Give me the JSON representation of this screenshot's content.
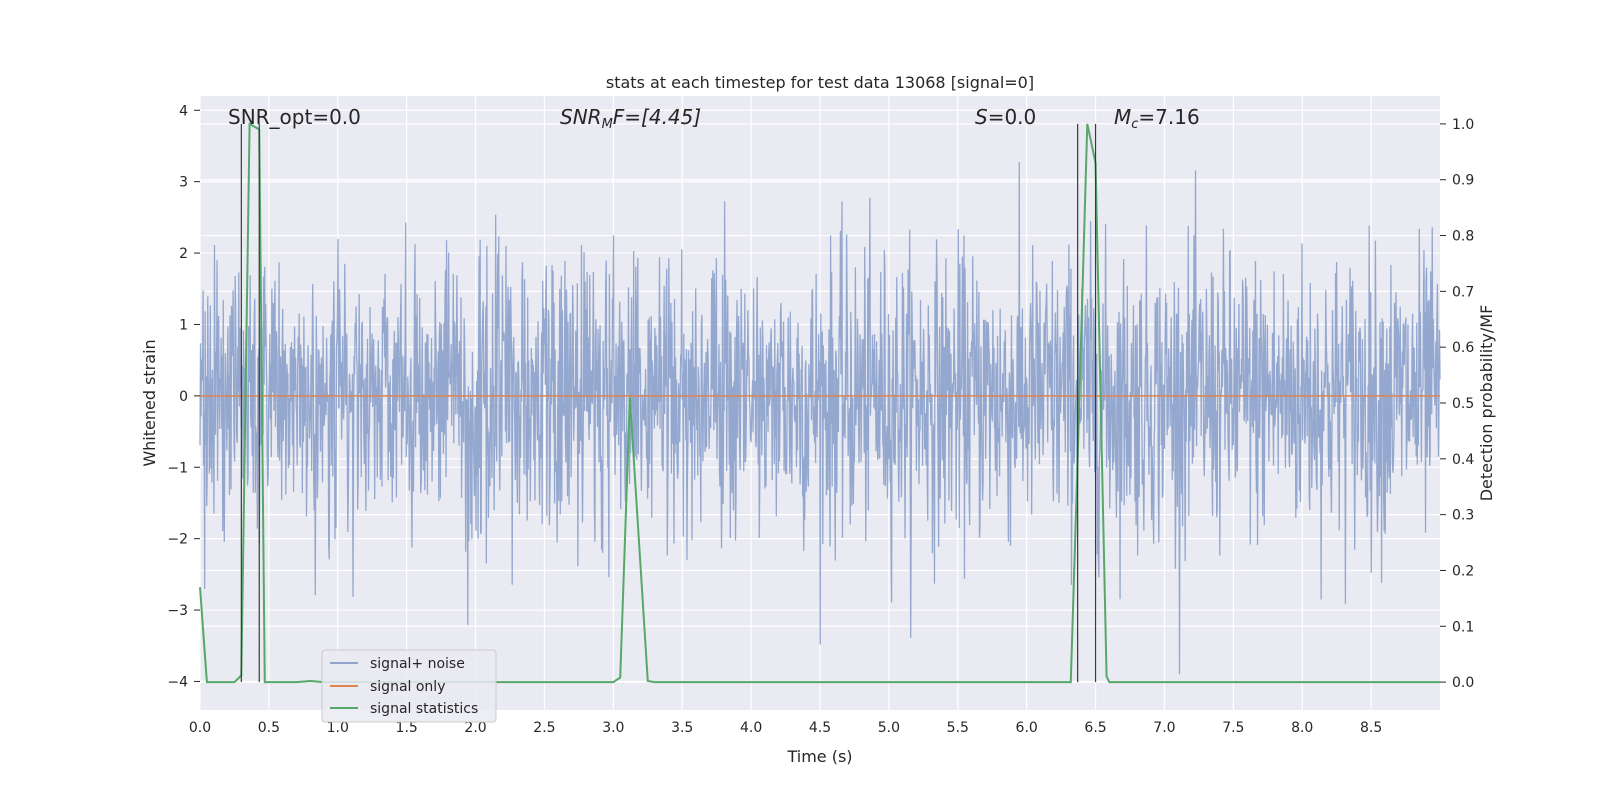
{
  "chart_data": {
    "type": "line",
    "title": "stats at each timestep for test data 13068 [signal=0]",
    "xlabel": "Time (s)",
    "ylabel": "Whitened strain",
    "y2label": "Detection probability/MF",
    "xlim": [
      0,
      9.0
    ],
    "ylim": [
      -4.4,
      4.2
    ],
    "y2lim": [
      -0.05,
      1.05
    ],
    "xticks": [
      "0.0",
      "0.5",
      "1.0",
      "1.5",
      "2.0",
      "2.5",
      "3.0",
      "3.5",
      "4.0",
      "4.5",
      "5.0",
      "5.5",
      "6.0",
      "6.5",
      "7.0",
      "7.5",
      "8.0",
      "8.5"
    ],
    "yticks": [
      "−4",
      "−3",
      "−2",
      "−1",
      "0",
      "1",
      "2",
      "3",
      "4"
    ],
    "y2ticks": [
      "0.0",
      "0.1",
      "0.2",
      "0.3",
      "0.4",
      "0.5",
      "0.6",
      "0.7",
      "0.8",
      "0.9",
      "1.0"
    ],
    "grid": true,
    "legend_position": "lower-left",
    "annotations": {
      "snr_opt": "SNR_opt=0.0",
      "snr_mf_base": "SNR",
      "snr_mf_sub": "M",
      "snr_mf_rest": "F=[4.45]",
      "s_base": "S",
      "s_rest": "=0.0",
      "mc_base": "M",
      "mc_sub": "c",
      "mc_rest": "=7.16"
    },
    "vlines": [
      0.3,
      0.43,
      6.37,
      6.5
    ],
    "series": [
      {
        "name": "signal+ noise",
        "color": "#8fa4cc",
        "axis": "left",
        "noise_envelope": {
          "std": 1.0,
          "max_abs": 3.9
        }
      },
      {
        "name": "signal only",
        "color": "#dd8452",
        "axis": "left",
        "x": [
          0,
          9.0
        ],
        "y": [
          0,
          0
        ]
      },
      {
        "name": "signal statistics",
        "color": "#55a868",
        "axis": "right",
        "x": [
          0,
          0.05,
          0.25,
          0.3,
          0.36,
          0.43,
          0.47,
          0.7,
          0.8,
          0.9,
          3.0,
          3.05,
          3.12,
          3.25,
          3.3,
          6.32,
          6.37,
          6.44,
          6.5,
          6.58,
          6.6,
          9.0
        ],
        "y": [
          0.17,
          0.0,
          0.0,
          0.012,
          1.0,
          0.99,
          0.0,
          0.0,
          0.002,
          0.0,
          0.0,
          0.008,
          0.51,
          0.002,
          0.0,
          0.0,
          0.4,
          1.0,
          0.93,
          0.01,
          0.0,
          0.0
        ]
      }
    ]
  }
}
